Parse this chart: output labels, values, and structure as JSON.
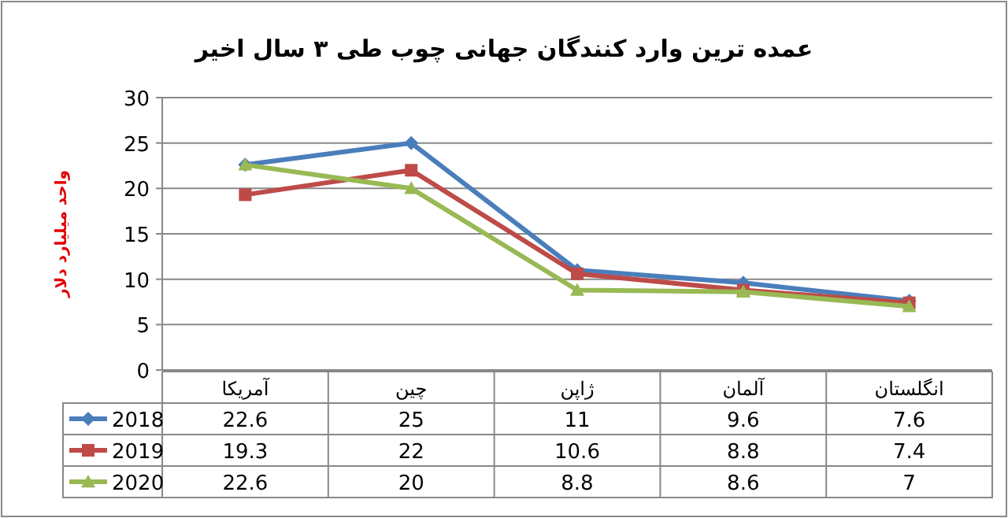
{
  "chart_data": {
    "type": "line",
    "title": "عمده ترین وارد کنندگان جهانی چوب طی ۳ سال اخیر",
    "ylabel": "واحد میلیارد دلار",
    "categories": [
      "آمریکا",
      "چین",
      "ژاپن",
      "آلمان",
      "انگلستان"
    ],
    "series": [
      {
        "name": "2018",
        "color": "#4a7ebb",
        "marker": "diamond",
        "values": [
          22.6,
          25,
          11,
          9.6,
          7.6
        ]
      },
      {
        "name": "2019",
        "color": "#be4b48",
        "marker": "square",
        "values": [
          19.3,
          22,
          10.6,
          8.8,
          7.4
        ]
      },
      {
        "name": "2020",
        "color": "#98b954",
        "marker": "triangle",
        "values": [
          22.6,
          20,
          8.8,
          8.6,
          7
        ]
      }
    ],
    "ylim": [
      0,
      30
    ],
    "yticks": [
      0,
      5,
      10,
      15,
      20,
      25,
      30
    ],
    "grid": "y",
    "legend": "bottom",
    "data_labels": true,
    "line_style": "solid"
  }
}
